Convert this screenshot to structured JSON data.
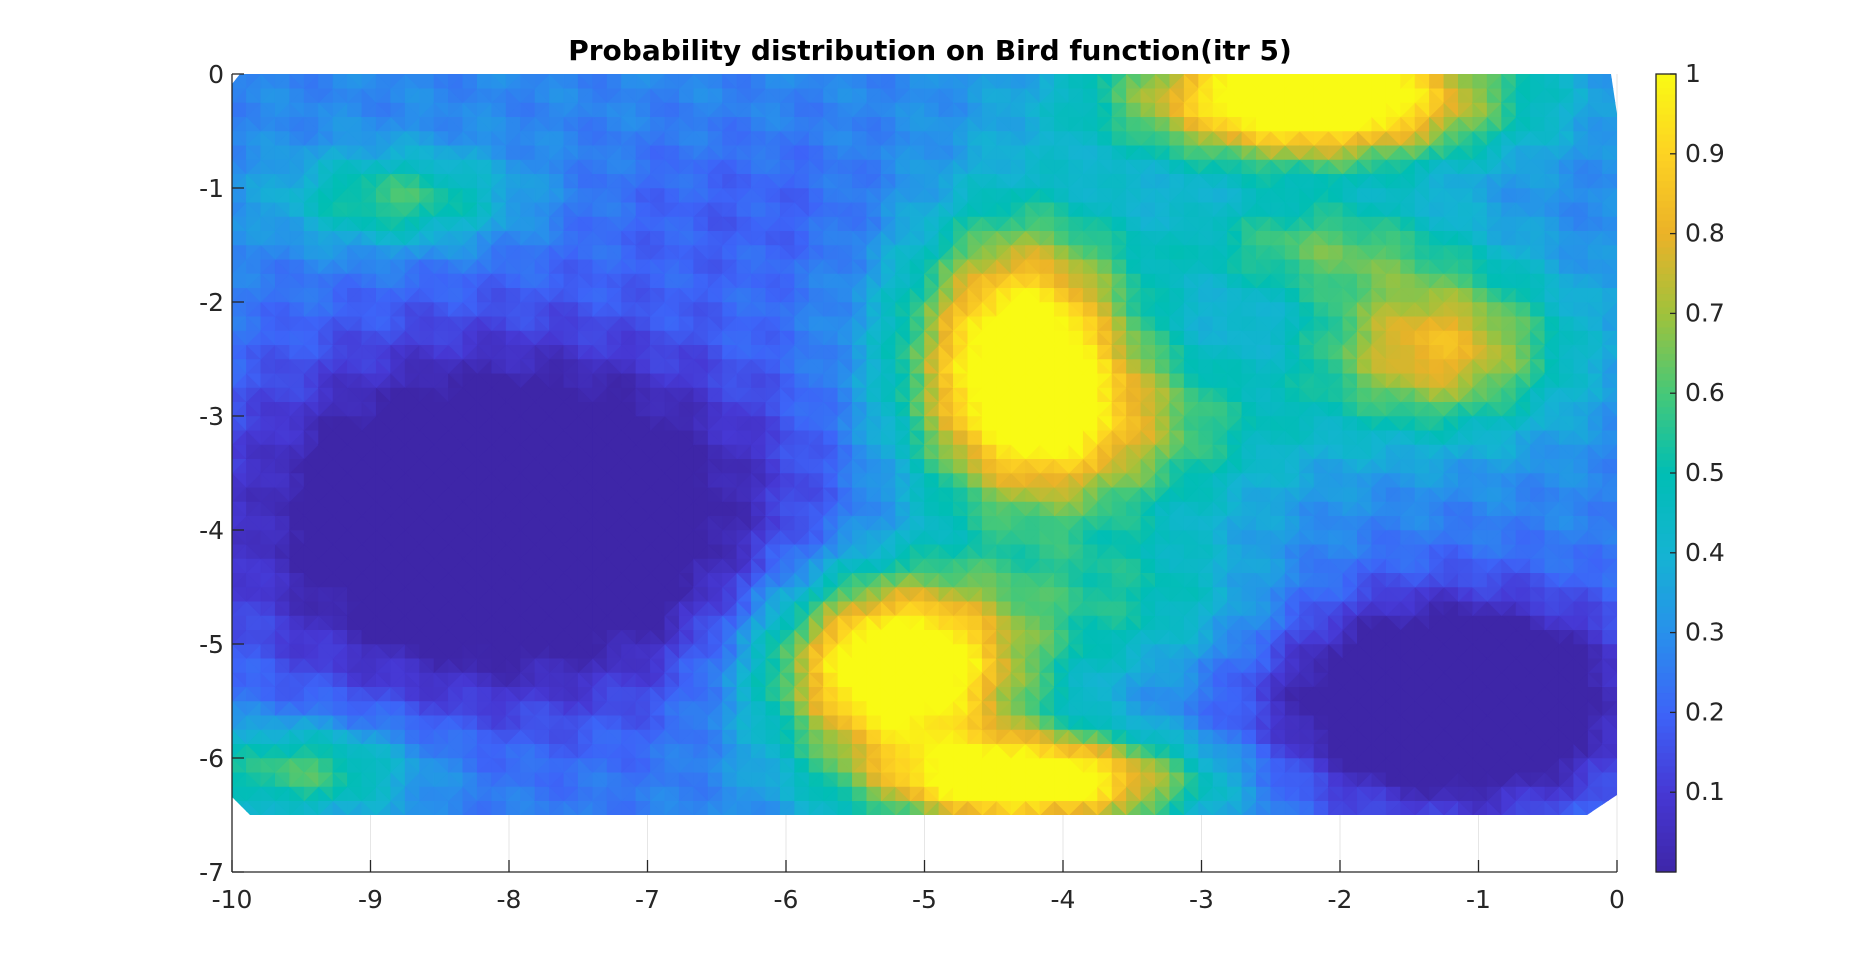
{
  "chart_data": {
    "type": "heatmap",
    "title": "Probability distribution on Bird function(itr 5)",
    "xlabel": "",
    "ylabel": "",
    "xlim": [
      -10,
      0
    ],
    "ylim": [
      -7,
      0
    ],
    "x_ticks": [
      -10,
      -9,
      -8,
      -7,
      -6,
      -5,
      -4,
      -3,
      -2,
      -1,
      0
    ],
    "y_ticks": [
      0,
      -1,
      -2,
      -3,
      -4,
      -5,
      -6,
      -7
    ],
    "x_tick_labels": [
      "-10",
      "-9",
      "-8",
      "-7",
      "-6",
      "-5",
      "-4",
      "-3",
      "-2",
      "-1",
      "0"
    ],
    "y_tick_labels": [
      "0",
      "-1",
      "-2",
      "-3",
      "-4",
      "-5",
      "-6",
      "-7"
    ],
    "data_region": {
      "x": [
        -10,
        0
      ],
      "y": [
        -6.5,
        0
      ]
    },
    "colorbar": {
      "colormap": "parula",
      "range": [
        0,
        1
      ],
      "ticks": [
        0.1,
        0.2,
        0.3,
        0.4,
        0.5,
        0.6,
        0.7,
        0.8,
        0.9,
        1
      ],
      "tick_labels": [
        "0.1",
        "0.2",
        "0.3",
        "0.4",
        "0.5",
        "0.6",
        "0.7",
        "0.8",
        "0.9",
        "1"
      ]
    },
    "features": [
      {
        "x": -8.0,
        "y": -3.9,
        "sx": 1.9,
        "sy": 1.5,
        "v": -0.55
      },
      {
        "x": -6.3,
        "y": -1.2,
        "sx": 1.2,
        "sy": 0.7,
        "v": -0.08
      },
      {
        "x": -8.8,
        "y": -1.1,
        "sx": 0.8,
        "sy": 0.4,
        "v": 0.32
      },
      {
        "x": -4.3,
        "y": -2.5,
        "sx": 0.8,
        "sy": 1.2,
        "v": 0.85
      },
      {
        "x": -5.2,
        "y": -5.2,
        "sx": 0.9,
        "sy": 0.8,
        "v": 0.95
      },
      {
        "x": -4.2,
        "y": -6.2,
        "sx": 1.1,
        "sy": 0.4,
        "v": 0.85
      },
      {
        "x": -2.2,
        "y": -0.2,
        "sx": 1.3,
        "sy": 0.55,
        "v": 0.95
      },
      {
        "x": -1.3,
        "y": -2.4,
        "sx": 0.9,
        "sy": 0.7,
        "v": 0.55
      },
      {
        "x": -3.5,
        "y": -3.1,
        "sx": 1.2,
        "sy": 0.7,
        "v": 0.3
      },
      {
        "x": -1.2,
        "y": -5.5,
        "sx": 1.3,
        "sy": 0.9,
        "v": -0.55
      },
      {
        "x": -3.5,
        "y": -4.6,
        "sx": 1.0,
        "sy": 0.7,
        "v": 0.22
      },
      {
        "x": -9.5,
        "y": -6.1,
        "sx": 0.8,
        "sy": 0.4,
        "v": 0.35
      },
      {
        "x": -2.2,
        "y": -1.5,
        "sx": 1.0,
        "sy": 0.45,
        "v": 0.3
      }
    ]
  }
}
